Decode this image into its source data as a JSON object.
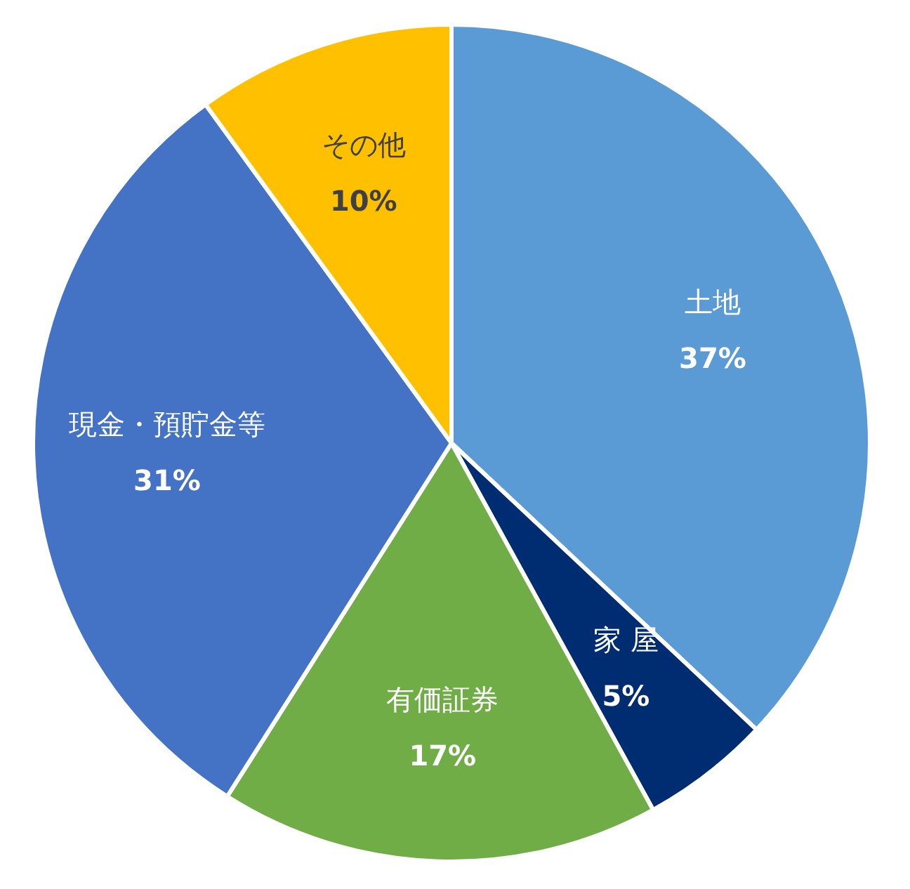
{
  "chart_data": {
    "type": "pie",
    "categories": [
      "土地",
      "家 屋",
      "有価証券",
      "現金・預貯金等",
      "その他"
    ],
    "values": [
      37,
      5,
      17,
      31,
      10
    ],
    "colors": [
      "#5b9bd5",
      "#002d72",
      "#70ad47",
      "#4472c4",
      "#ffc000"
    ],
    "value_labels": [
      "37%",
      "5%",
      "17%",
      "31%",
      "10%"
    ]
  }
}
